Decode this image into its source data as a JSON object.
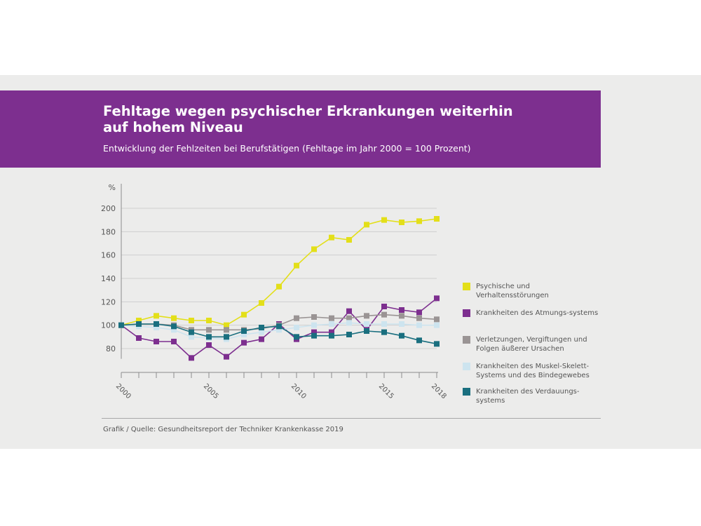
{
  "header": {
    "title_line1": "Fehltage wegen psychischer Erkrankungen weiterhin",
    "title_line2": "auf hohem Niveau",
    "subtitle": "Entwicklung der Fehlzeiten bei Berufstätigen (Fehltage im Jahr 2000 = 100 Prozent)"
  },
  "footer": {
    "source": "Grafik / Quelle: Gesundheitsreport der Techniker Krankenkasse 2019"
  },
  "chart_data": {
    "type": "line",
    "ylabel": "%",
    "ylim": [
      70,
      200
    ],
    "yticks": [
      80,
      100,
      120,
      140,
      160,
      180,
      200
    ],
    "x": [
      2000,
      2001,
      2002,
      2003,
      2004,
      2005,
      2006,
      2007,
      2008,
      2009,
      2010,
      2011,
      2012,
      2013,
      2014,
      2015,
      2016,
      2017,
      2018
    ],
    "xtick_labels": [
      "2000",
      "2005",
      "2010",
      "2015",
      "2018"
    ],
    "xtick_values": [
      2000,
      2005,
      2010,
      2015,
      2018
    ],
    "grid": "horizontal",
    "legend_position": "right",
    "series": [
      {
        "name": "Psychische und Verhaltensstörungen",
        "color": "#e3df19",
        "values": [
          100,
          104,
          108,
          106,
          104,
          104,
          100,
          109,
          119,
          133,
          151,
          165,
          175,
          173,
          186,
          190,
          188,
          189,
          191
        ]
      },
      {
        "name": "Krankheiten des Atmungs-systems",
        "color": "#7d2f8f",
        "values": [
          100,
          89,
          86,
          86,
          72,
          83,
          73,
          85,
          88,
          101,
          88,
          94,
          94,
          112,
          96,
          116,
          113,
          111,
          123
        ]
      },
      {
        "name": "Verletzungen, Vergiftungen und Folgen äußerer Ursachen",
        "color": "#9a9494",
        "values": [
          100,
          101,
          101,
          100,
          96,
          96,
          96,
          96,
          97,
          100,
          106,
          107,
          106,
          106,
          108,
          109,
          108,
          106,
          105
        ]
      },
      {
        "name": "Krankheiten des Muskel-Skelett-Systems und des Bindegewebes",
        "color": "#cde4ef",
        "values": [
          100,
          99,
          98,
          96,
          90,
          89,
          88,
          92,
          94,
          96,
          98,
          100,
          101,
          102,
          101,
          101,
          101,
          100,
          100
        ]
      },
      {
        "name": "Krankheiten des Verdauungs-systems",
        "color": "#1a6f7f",
        "values": [
          100,
          101,
          101,
          99,
          94,
          90,
          90,
          95,
          98,
          99,
          90,
          91,
          91,
          92,
          95,
          94,
          91,
          87,
          84
        ]
      }
    ]
  }
}
